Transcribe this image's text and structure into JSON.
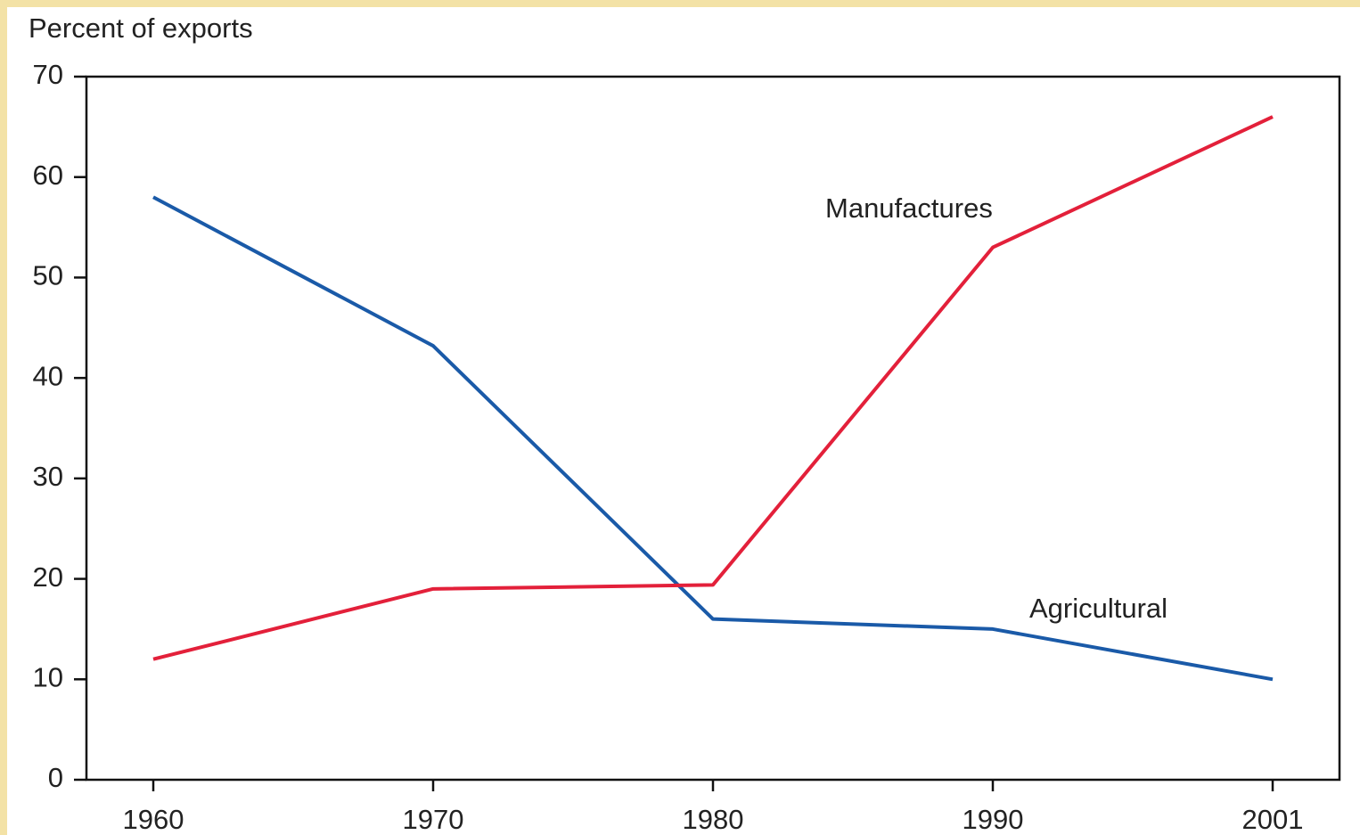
{
  "chart_data": {
    "type": "line",
    "y_label": "Percent of exports",
    "categories": [
      "1960",
      "1970",
      "1980",
      "1990",
      "2001"
    ],
    "series": [
      {
        "name": "Agricultural",
        "color": "#1a5aa8",
        "values": [
          58,
          43.2,
          16,
          15,
          10
        ]
      },
      {
        "name": "Manufactures",
        "color": "#e3203a",
        "values": [
          12,
          19,
          19.4,
          53,
          66
        ]
      }
    ],
    "ylim": [
      0,
      70
    ],
    "yticks": [
      0,
      10,
      20,
      30,
      40,
      50,
      60,
      70
    ],
    "grid": false
  }
}
